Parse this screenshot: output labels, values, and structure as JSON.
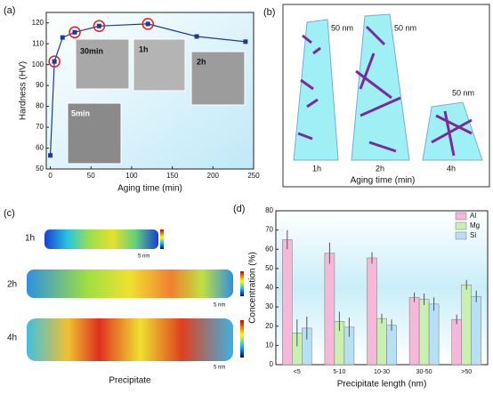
{
  "chart_data": [
    {
      "type": "line",
      "panel_label": "(a)",
      "xlabel": "Aging time (min)",
      "ylabel": "Hardness (HV)",
      "x": [
        0,
        5,
        15,
        30,
        60,
        120,
        180,
        240
      ],
      "series": [
        {
          "color": "#1f3a93",
          "values": [
            56.5,
            101.5,
            113,
            115.5,
            118.5,
            119.5,
            113.5,
            111
          ],
          "errors": [
            1,
            1,
            1,
            1,
            1,
            1,
            1,
            1
          ]
        }
      ],
      "highlight": [
        1,
        3,
        4,
        5
      ],
      "highlight_color": "#e02020",
      "xlim": [
        -5,
        250
      ],
      "xticks": [
        0,
        50,
        100,
        150,
        200,
        250
      ],
      "ylim": [
        50,
        125
      ],
      "yticks": [
        50,
        60,
        70,
        80,
        90,
        100,
        110,
        120
      ],
      "insets": [
        "30min",
        "1h",
        "2h",
        "5min"
      ]
    },
    {
      "type": "bar",
      "panel_label": "(d)",
      "xlabel": "Precipitate length (nm)",
      "ylabel": "Concentration (%)",
      "categories": [
        "<5",
        "5-10",
        "10-30",
        "30-50",
        ">50"
      ],
      "series": [
        {
          "name": "Al",
          "color": "#f5b8d8",
          "values": [
            65,
            58,
            55.5,
            35,
            23.5
          ],
          "errors": [
            5,
            5.5,
            3,
            2.5,
            2.5
          ]
        },
        {
          "name": "Mg",
          "color": "#c8f0b0",
          "values": [
            16.5,
            22.5,
            24,
            34,
            41.5
          ],
          "errors": [
            7,
            5,
            2.5,
            3,
            2.5
          ]
        },
        {
          "name": "Si",
          "color": "#b8e0f5",
          "values": [
            19,
            19.5,
            20.5,
            31.5,
            35.5
          ],
          "errors": [
            6,
            5,
            3,
            3.5,
            3
          ]
        }
      ],
      "ylim": [
        0,
        80
      ],
      "yticks": [
        0,
        10,
        20,
        30,
        40,
        50,
        60,
        70,
        80
      ],
      "legend": "upper right"
    }
  ],
  "panel_b": {
    "label": "(b)",
    "scales": [
      "50 nm",
      "50 nm",
      "50 nm"
    ],
    "times": [
      "1h",
      "2h",
      "4h"
    ],
    "xlabel": "Aging time (min)"
  },
  "panel_c": {
    "label": "(c)",
    "times": [
      "1h",
      "2h",
      "4h"
    ],
    "scales": [
      "5 nm",
      "5 nm",
      "5 nm"
    ],
    "xlabel": "Precipitate"
  }
}
